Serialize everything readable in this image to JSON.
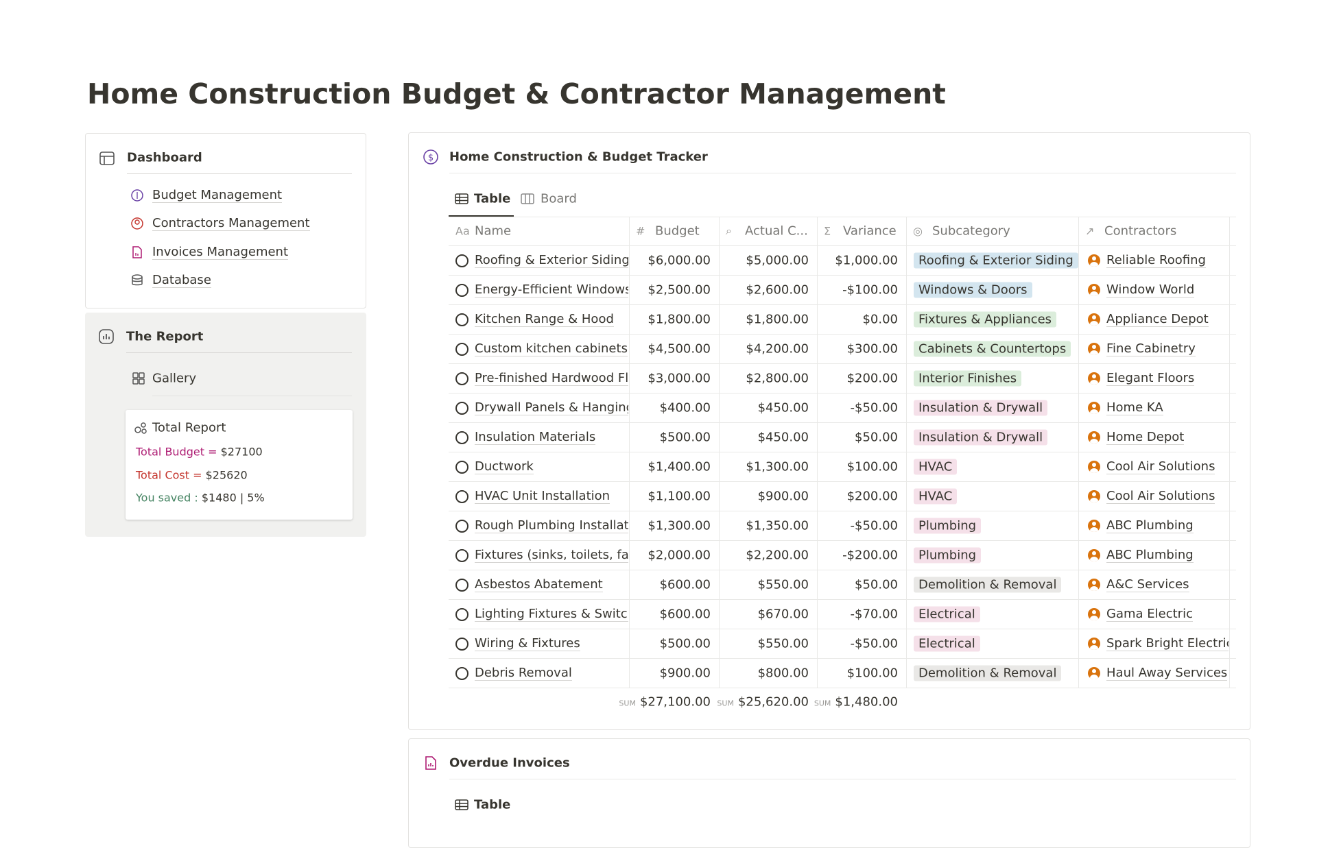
{
  "header": {
    "title": "Home Construction Budget & Contractor Management"
  },
  "sidebar": {
    "dashboard": {
      "title": "Dashboard",
      "links": [
        "Budget Management",
        "Contractors Management",
        "Invoices Management",
        "Database"
      ]
    },
    "report": {
      "title": "The Report",
      "gallery": "Gallery",
      "card": {
        "title": "Total Report",
        "lines": [
          {
            "label": "Total Budget =",
            "value": "$27100",
            "color": "#ad1a72"
          },
          {
            "label": "Total Cost =",
            "value": "$25620",
            "color": "#c4332b"
          },
          {
            "label": "You saved :",
            "value": "$1480 | 5%",
            "color": "#448361"
          }
        ]
      }
    }
  },
  "tracker": {
    "title": "Home Construction & Budget Tracker",
    "tabs": [
      "Table",
      "Board"
    ],
    "table": {
      "columns": [
        "Name",
        "Budget",
        "Actual C...",
        "Variance",
        "Subcategory",
        "Contractors"
      ],
      "rows": [
        [
          "Roofing & Exterior Siding",
          "$6,000.00",
          "$5,000.00",
          "$1,000.00",
          "Roofing & Exterior Siding",
          "Reliable Roofing"
        ],
        [
          "Energy-Efficient Windows",
          "$2,500.00",
          "$2,600.00",
          "-$100.00",
          "Windows & Doors",
          "Window World"
        ],
        [
          "Kitchen Range & Hood",
          "$1,800.00",
          "$1,800.00",
          "$0.00",
          "Fixtures & Appliances",
          "Appliance Depot"
        ],
        [
          "Custom kitchen cabinets",
          "$4,500.00",
          "$4,200.00",
          "$300.00",
          "Cabinets & Countertops",
          "Fine Cabinetry"
        ],
        [
          "Pre-finished Hardwood Fl",
          "$3,000.00",
          "$2,800.00",
          "$200.00",
          "Interior Finishes",
          "Elegant Floors"
        ],
        [
          "Drywall Panels & Hanging",
          "$400.00",
          "$450.00",
          "-$50.00",
          "Insulation & Drywall",
          "Home KA"
        ],
        [
          "Insulation Materials",
          "$500.00",
          "$450.00",
          "$50.00",
          "Insulation & Drywall",
          "Home Depot"
        ],
        [
          "Ductwork",
          "$1,400.00",
          "$1,300.00",
          "$100.00",
          "HVAC",
          "Cool Air Solutions"
        ],
        [
          "HVAC Unit Installation",
          "$1,100.00",
          "$900.00",
          "$200.00",
          "HVAC",
          "Cool Air Solutions"
        ],
        [
          "Rough Plumbing Installatio",
          "$1,300.00",
          "$1,350.00",
          "-$50.00",
          "Plumbing",
          "ABC Plumbing"
        ],
        [
          "Fixtures (sinks, toilets, fau",
          "$2,000.00",
          "$2,200.00",
          "-$200.00",
          "Plumbing",
          "ABC Plumbing"
        ],
        [
          "Asbestos Abatement",
          "$600.00",
          "$550.00",
          "$50.00",
          "Demolition & Removal",
          "A&C Services"
        ],
        [
          "Lighting Fixtures & Switch",
          "$600.00",
          "$670.00",
          "-$70.00",
          "Electrical",
          "Gama Electric"
        ],
        [
          "Wiring & Fixtures",
          "$500.00",
          "$550.00",
          "-$50.00",
          "Electrical",
          "Spark Bright Electric"
        ],
        [
          "Debris Removal",
          "$900.00",
          "$800.00",
          "$100.00",
          "Demolition & Removal",
          "Haul Away Services"
        ]
      ],
      "tag_colors": {
        "Roofing & Exterior Siding": "#d3e5ef",
        "Windows & Doors": "#d3e5ef",
        "Fixtures & Appliances": "#dbeddb",
        "Cabinets & Countertops": "#dbeddb",
        "Interior Finishes": "#dbeddb",
        "Insulation & Drywall": "#f5e0e9",
        "HVAC": "#f5e0e9",
        "Plumbing": "#f5e0e9",
        "Demolition & Removal": "#e9e8e6",
        "Electrical": "#f5e0e9"
      },
      "totals": {
        "prefix": "SUM",
        "values": [
          "$27,100.00",
          "$25,620.00",
          "$1,480.00"
        ]
      }
    }
  },
  "invoices": {
    "title": "Overdue Invoices",
    "tab": "Table"
  }
}
